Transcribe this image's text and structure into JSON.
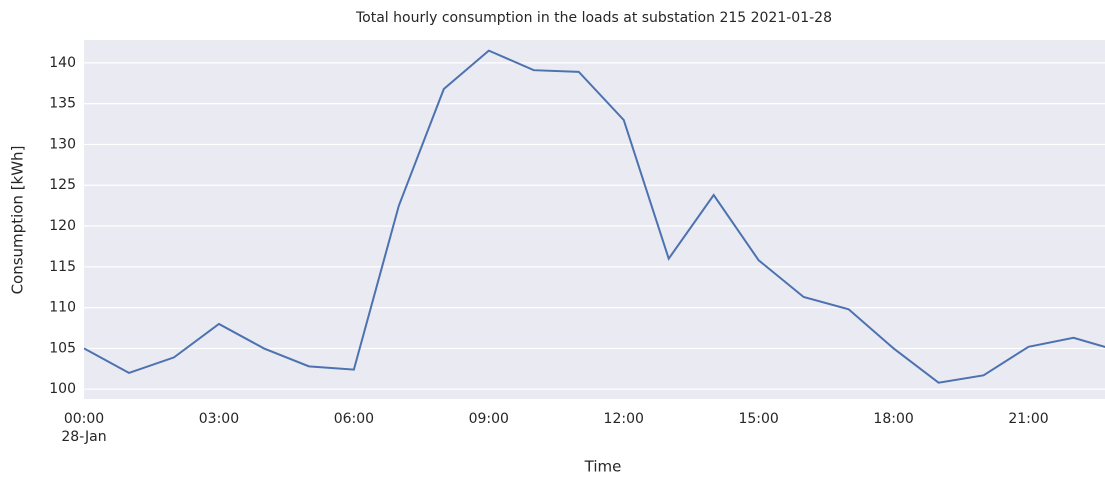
{
  "chart_data": {
    "type": "line",
    "title": "Total hourly consumption in the loads at substation 215 2021-01-28",
    "x_label": "Time",
    "y_label": "Consumption [kWh]",
    "x": [
      0,
      1,
      2,
      3,
      4,
      5,
      6,
      7,
      8,
      9,
      10,
      11,
      12,
      13,
      14,
      15,
      16,
      17,
      18,
      19,
      20,
      21,
      22,
      23
    ],
    "series": [
      {
        "name": "Consumption",
        "color": "#4c72b0",
        "values": [
          105,
          102,
          103.9,
          108,
          105,
          102.8,
          102.4,
          122.5,
          136.8,
          141.5,
          139.1,
          138.9,
          133,
          116,
          123.8,
          115.8,
          111.3,
          109.8,
          105,
          100.8,
          101.7,
          105.2,
          106.3,
          104.7
        ]
      }
    ],
    "xlim": [
      0,
      22.7
    ],
    "xticks": [
      {
        "value": 0,
        "label": "00:00"
      },
      {
        "value": 3,
        "label": "03:00"
      },
      {
        "value": 6,
        "label": "06:00"
      },
      {
        "value": 9,
        "label": "09:00"
      },
      {
        "value": 12,
        "label": "12:00"
      },
      {
        "value": 15,
        "label": "15:00"
      },
      {
        "value": 18,
        "label": "18:00"
      },
      {
        "value": 21,
        "label": "21:00"
      }
    ],
    "x_date_label": "28-Jan",
    "ylim": [
      98.8,
      142.8
    ],
    "yticks": [
      100,
      105,
      110,
      115,
      120,
      125,
      130,
      135,
      140
    ],
    "grid": true,
    "background": "#eaeaf2"
  }
}
